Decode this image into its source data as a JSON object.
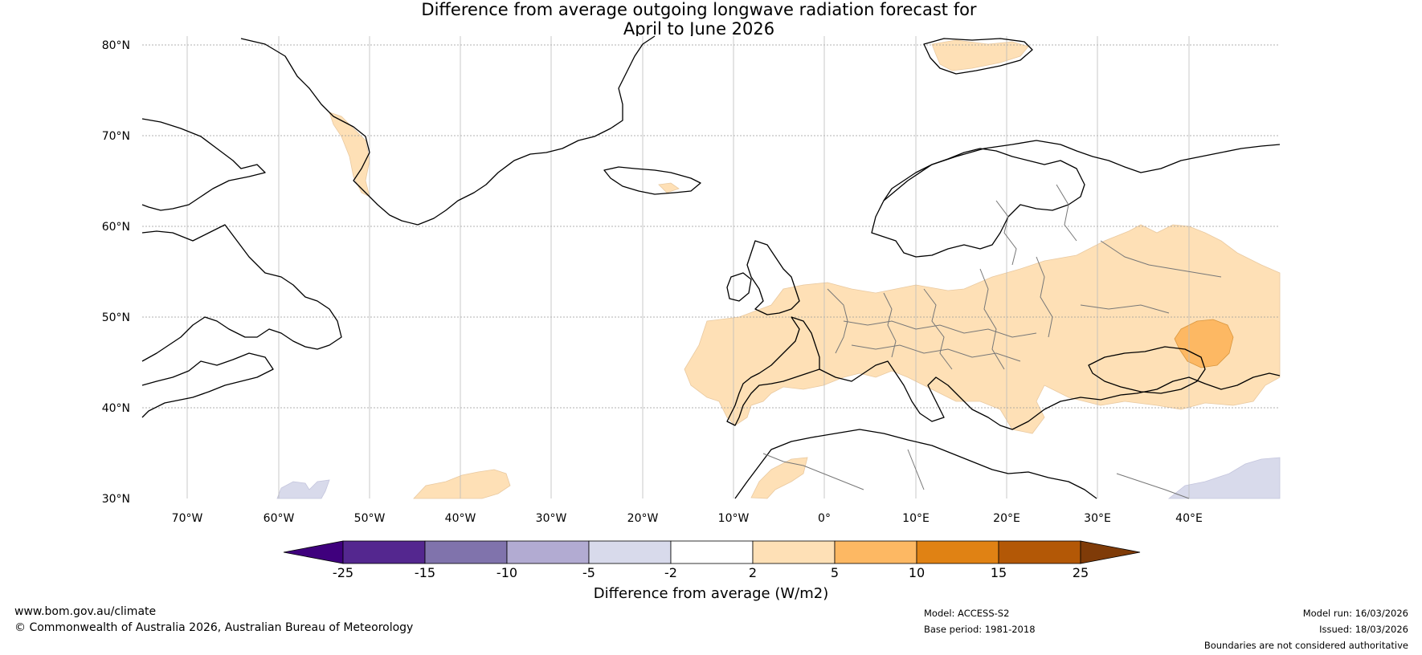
{
  "title_line1": "Difference from average outgoing longwave radiation forecast for",
  "title_line2": "April to June 2026",
  "lat_labels": [
    "80°N",
    "70°N",
    "60°N",
    "50°N",
    "40°N",
    "30°N"
  ],
  "lon_labels": [
    "70°W",
    "60°W",
    "50°W",
    "40°W",
    "30°W",
    "20°W",
    "10°W",
    "0°",
    "10°E",
    "20°E",
    "30°E",
    "40°E"
  ],
  "colorbar": {
    "label": "Difference from average (W/m2)",
    "ticks": [
      "-25",
      "-15",
      "-10",
      "-5",
      "-2",
      "2",
      "5",
      "10",
      "15",
      "25"
    ],
    "colors": [
      "#3f007d",
      "#54278f",
      "#8073ac",
      "#b2abd2",
      "#d8daeb",
      "#ffffff",
      "#fee0b6",
      "#fdb863",
      "#e08214",
      "#b35806",
      "#7f3b08"
    ]
  },
  "footer": {
    "website": "www.bom.gov.au/climate",
    "copyright": "© Commonwealth of Australia 2026, Australian Bureau of Meteorology",
    "model": "Model: ACCESS-S2",
    "base_period": "Base period: 1981-2018",
    "model_run": "Model run: 16/03/2026",
    "issued": "Issued: 18/03/2026",
    "disclaimer": "Boundaries are not considered authoritative"
  }
}
